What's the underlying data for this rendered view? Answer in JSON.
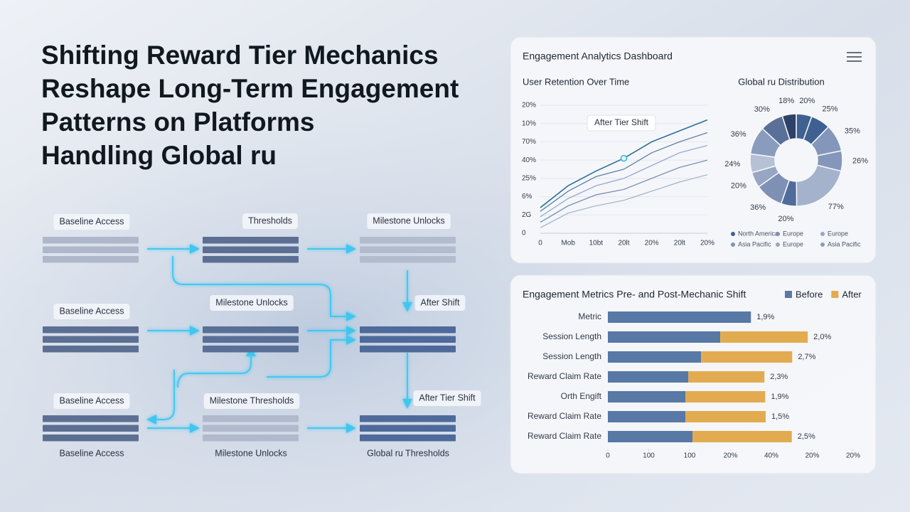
{
  "title": [
    "Shifting Reward Tier Mechanics",
    "Reshape Long-Term Engagement",
    "Patterns on Platforms",
    "Handling Global ru"
  ],
  "diagram": {
    "nodes": [
      "Baseline Access",
      "Thresholds",
      "Milestone Unlocks",
      "Baseline Access",
      "Milestone Unlocks",
      "After Shift",
      "Baseline Access",
      "Milestone Thresholds",
      "After Tier Shift"
    ],
    "captions": [
      "Baseline Access",
      "Milestone Unlocks",
      "Global ru Thresholds"
    ]
  },
  "dashboard": {
    "title": "Engagement Analytics Dashboard",
    "line_chart": {
      "type": "line",
      "title": "User Retention Over Time",
      "categories": [
        "0",
        "Mob",
        "10bt",
        "20lt",
        "20%",
        "20lt",
        "20%"
      ],
      "ylim": [
        0,
        7
      ],
      "yticks": [
        0,
        {
          "value": 1,
          "label": "2G"
        },
        {
          "value": 2,
          "label": "6%"
        },
        {
          "value": 3,
          "label": "25%"
        },
        {
          "value": 4,
          "label": "40%"
        },
        {
          "value": 5,
          "label": "70%"
        },
        {
          "value": 6,
          "label": "10%"
        },
        {
          "value": 7,
          "label": "20%"
        }
      ],
      "grid": true,
      "annotation": "After Tier Shift",
      "series": [
        {
          "color": "#2d6e98",
          "values": [
            1.4,
            2.6,
            3.4,
            4.1,
            5.0,
            5.6,
            6.2
          ]
        },
        {
          "color": "#4d76a3",
          "values": [
            1.2,
            2.3,
            3.1,
            3.5,
            4.4,
            5.0,
            5.5
          ]
        },
        {
          "color": "#8aa4c8",
          "values": [
            0.9,
            1.9,
            2.6,
            3.0,
            3.7,
            4.4,
            4.8
          ]
        },
        {
          "color": "#6f86b0",
          "values": [
            0.6,
            1.5,
            2.1,
            2.4,
            3.0,
            3.6,
            4.0
          ]
        },
        {
          "color": "#9fb0cc",
          "values": [
            0.3,
            1.1,
            1.5,
            1.8,
            2.3,
            2.8,
            3.2
          ]
        }
      ]
    },
    "donut": {
      "type": "pie",
      "title": "Global ru Distribution",
      "values": [
        20,
        25,
        35,
        26,
        77,
        20,
        36,
        20,
        24,
        36,
        30,
        18
      ],
      "value_labels": [
        "20%",
        "25%",
        "35%",
        "26%",
        "77%",
        "20%",
        "36%",
        "20%",
        "24%",
        "36%",
        "30%",
        "18%"
      ],
      "colors": [
        "#3f6191",
        "#3f6191",
        "#8497ba",
        "#8497ba",
        "#a4b2cb",
        "#4f6c9c",
        "#7e91b5",
        "#96a6c3",
        "#b6c1d5",
        "#8a9cbd",
        "#5b7098",
        "#2e4168"
      ],
      "legend": [
        {
          "name": "North America",
          "color": "#3f6191"
        },
        {
          "name": "Europe",
          "color": "#7e91b5"
        },
        {
          "name": "Europe",
          "color": "#96a6c3"
        },
        {
          "name": "Asia Pacific",
          "color": "#7e91b5"
        },
        {
          "name": "Europe",
          "color": "#96a6c3"
        },
        {
          "name": "Asia Pacific",
          "color": "#8a9cbd"
        }
      ]
    }
  },
  "bar_chart": {
    "type": "bar",
    "title": "Engagement Metrics Pre- and Post-Mechanic Shift",
    "categories": [
      "Metric",
      "Session Length",
      "Session Length",
      "Reward Claim Rate",
      "Orth Engift",
      "Reward Claim Rate",
      "Reward Claim Rate"
    ],
    "xlim": [
      0,
      6
    ],
    "xticks": [
      0,
      {
        "value": 1,
        "label": "100"
      },
      {
        "value": 2,
        "label": "100"
      },
      {
        "value": 3,
        "label": "20%"
      },
      {
        "value": 4,
        "label": "40%"
      },
      {
        "value": 5,
        "label": "20%"
      },
      {
        "value": 6,
        "label": "20%"
      }
    ],
    "series": [
      {
        "name": "Before",
        "color": "#5878a6",
        "values": [
          3.5,
          2.75,
          2.28,
          1.97,
          1.9,
          1.9,
          2.07
        ]
      },
      {
        "name": "After",
        "color": "#e3ab50",
        "values": [
          null,
          2.14,
          2.23,
          1.86,
          1.95,
          1.96,
          2.43
        ]
      }
    ],
    "bar_notes": [
      "1,9%",
      "2,0%",
      "2,7%",
      "2,3%",
      "1,9%",
      "1,5%",
      "2,5%"
    ],
    "legend_position": "top-right"
  }
}
